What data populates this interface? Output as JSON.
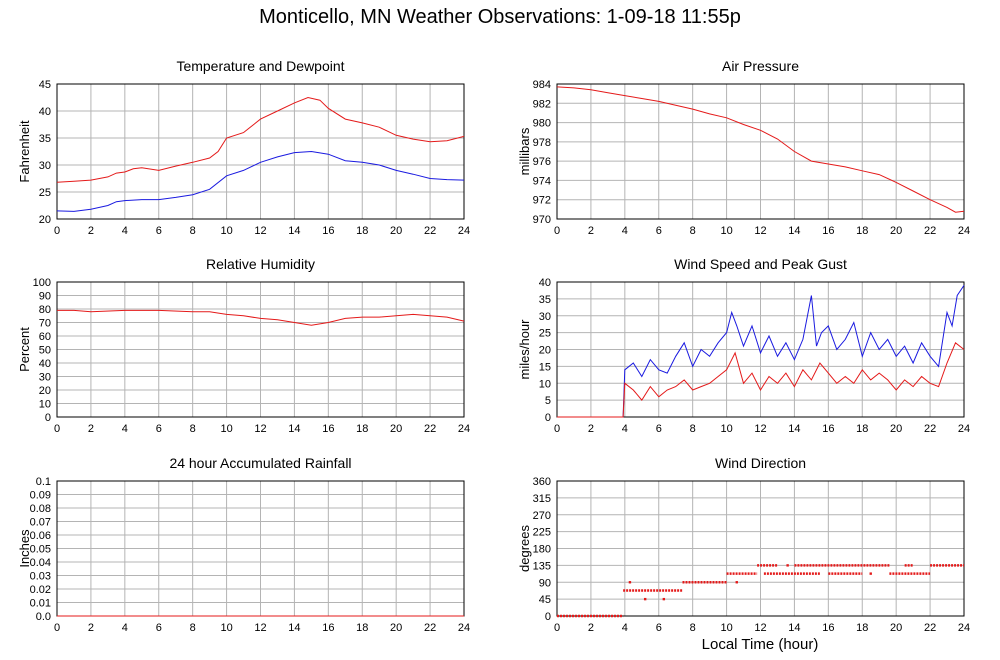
{
  "title": "Monticello, MN Weather Observations: 1-09-18 11:55p",
  "x_axis_label": "Local Time (hour)",
  "colors": {
    "red": "#e41a1a",
    "blue": "#1a1ae0",
    "grid": "#b4b4b4"
  },
  "chart_data": [
    {
      "id": "temp",
      "type": "line",
      "title": "Temperature and Dewpoint",
      "ylabel": "Fahrenheit",
      "xlim": [
        0,
        24
      ],
      "ylim": [
        20,
        45
      ],
      "x_ticks": [
        0,
        2,
        4,
        6,
        8,
        10,
        12,
        14,
        16,
        18,
        20,
        22,
        24
      ],
      "y_ticks": [
        20,
        25,
        30,
        35,
        40,
        45
      ],
      "grid": true,
      "series": [
        {
          "color": "red",
          "x": [
            0,
            1,
            2,
            3,
            3.5,
            4,
            4.5,
            5,
            6,
            7,
            8,
            9,
            9.5,
            10,
            11,
            12,
            13,
            14,
            14.8,
            15.5,
            16,
            17,
            18,
            19,
            20,
            21,
            22,
            23,
            24
          ],
          "y": [
            26.8,
            27.0,
            27.2,
            27.8,
            28.5,
            28.7,
            29.3,
            29.5,
            29.0,
            29.8,
            30.5,
            31.3,
            32.5,
            35.0,
            36.0,
            38.5,
            40.0,
            41.5,
            42.5,
            42.0,
            40.5,
            38.5,
            37.8,
            37.0,
            35.5,
            34.8,
            34.3,
            34.5,
            35.3
          ]
        },
        {
          "color": "blue",
          "x": [
            0,
            1,
            2,
            3,
            3.5,
            4,
            5,
            6,
            7,
            8,
            9,
            10,
            11,
            12,
            13,
            14,
            15,
            16,
            17,
            18,
            19,
            20,
            21,
            22,
            23,
            24
          ],
          "y": [
            21.5,
            21.4,
            21.8,
            22.5,
            23.2,
            23.4,
            23.6,
            23.6,
            24.0,
            24.5,
            25.5,
            28.0,
            29.0,
            30.5,
            31.5,
            32.3,
            32.5,
            32.0,
            30.8,
            30.5,
            30.0,
            29.0,
            28.3,
            27.5,
            27.3,
            27.2
          ]
        }
      ]
    },
    {
      "id": "pressure",
      "type": "line",
      "title": "Air Pressure",
      "ylabel": "millibars",
      "xlim": [
        0,
        24
      ],
      "ylim": [
        970,
        984
      ],
      "x_ticks": [
        0,
        2,
        4,
        6,
        8,
        10,
        12,
        14,
        16,
        18,
        20,
        22,
        24
      ],
      "y_ticks": [
        970,
        972,
        974,
        976,
        978,
        980,
        982,
        984
      ],
      "grid": true,
      "series": [
        {
          "color": "red",
          "x": [
            0,
            1,
            2,
            3,
            4,
            5,
            6,
            7,
            8,
            9,
            10,
            11,
            12,
            13,
            14,
            15,
            16,
            17,
            18,
            19,
            20,
            21,
            22,
            23,
            23.5,
            24
          ],
          "y": [
            983.7,
            983.6,
            983.4,
            983.1,
            982.8,
            982.5,
            982.2,
            981.8,
            981.4,
            980.9,
            980.5,
            979.8,
            979.2,
            978.3,
            977.0,
            976.0,
            975.7,
            975.4,
            975.0,
            974.6,
            973.8,
            972.9,
            972.0,
            971.2,
            970.7,
            970.8
          ]
        }
      ]
    },
    {
      "id": "humidity",
      "type": "line",
      "title": "Relative Humidity",
      "ylabel": "Percent",
      "xlim": [
        0,
        24
      ],
      "ylim": [
        0,
        100
      ],
      "x_ticks": [
        0,
        2,
        4,
        6,
        8,
        10,
        12,
        14,
        16,
        18,
        20,
        22,
        24
      ],
      "y_ticks": [
        0,
        10,
        20,
        30,
        40,
        50,
        60,
        70,
        80,
        90,
        100
      ],
      "grid": true,
      "series": [
        {
          "color": "red",
          "x": [
            0,
            1,
            2,
            4,
            6,
            8,
            9,
            10,
            11,
            12,
            13,
            14,
            15,
            16,
            17,
            18,
            19,
            20,
            21,
            22,
            23,
            24
          ],
          "y": [
            79,
            79,
            78,
            79,
            79,
            78,
            78,
            76,
            75,
            73,
            72,
            70,
            68,
            70,
            73,
            74,
            74,
            75,
            76,
            75,
            74,
            71
          ]
        }
      ]
    },
    {
      "id": "wind",
      "type": "line",
      "title": "Wind Speed and Peak Gust",
      "ylabel": "miles/hour",
      "xlim": [
        0,
        24
      ],
      "ylim": [
        0,
        40
      ],
      "x_ticks": [
        0,
        2,
        4,
        6,
        8,
        10,
        12,
        14,
        16,
        18,
        20,
        22,
        24
      ],
      "y_ticks": [
        0,
        5,
        10,
        15,
        20,
        25,
        30,
        35,
        40
      ],
      "grid": true,
      "series": [
        {
          "color": "blue",
          "x": [
            0,
            3.9,
            4.0,
            4.5,
            5,
            5.5,
            6,
            6.5,
            7,
            7.5,
            8,
            8.5,
            9,
            9.5,
            10,
            10.3,
            10.6,
            11,
            11.5,
            12,
            12.5,
            13,
            13.5,
            14,
            14.5,
            15,
            15.3,
            15.6,
            16,
            16.5,
            17,
            17.5,
            18,
            18.5,
            19,
            19.5,
            20,
            20.5,
            21,
            21.5,
            22,
            22.5,
            23,
            23.3,
            23.6,
            24
          ],
          "y": [
            0,
            0,
            14,
            16,
            12,
            17,
            14,
            13,
            18,
            22,
            15,
            20,
            18,
            22,
            25,
            31,
            27,
            21,
            27,
            19,
            24,
            18,
            22,
            17,
            23,
            36,
            21,
            25,
            27,
            20,
            23,
            28,
            18,
            25,
            20,
            23,
            18,
            21,
            16,
            22,
            18,
            15,
            31,
            27,
            36,
            39
          ]
        },
        {
          "color": "red",
          "x": [
            0,
            3.9,
            4.0,
            4.5,
            5,
            5.5,
            6,
            6.5,
            7,
            7.5,
            8,
            8.5,
            9,
            9.5,
            10,
            10.5,
            11,
            11.5,
            12,
            12.5,
            13,
            13.5,
            14,
            14.5,
            15,
            15.5,
            16,
            16.5,
            17,
            17.5,
            18,
            18.5,
            19,
            19.5,
            20,
            20.5,
            21,
            21.5,
            22,
            22.5,
            23,
            23.5,
            24
          ],
          "y": [
            0,
            0,
            10,
            8,
            5,
            9,
            6,
            8,
            9,
            11,
            8,
            9,
            10,
            12,
            14,
            19,
            10,
            13,
            8,
            12,
            10,
            13,
            9,
            14,
            11,
            16,
            13,
            10,
            12,
            10,
            14,
            11,
            13,
            11,
            8,
            11,
            9,
            12,
            10,
            9,
            16,
            22,
            20
          ]
        }
      ]
    },
    {
      "id": "rain",
      "type": "line",
      "title": "24 hour Accumulated Rainfall",
      "ylabel": "Inches",
      "xlim": [
        0,
        24
      ],
      "ylim": [
        0,
        0.1
      ],
      "x_ticks": [
        0,
        2,
        4,
        6,
        8,
        10,
        12,
        14,
        16,
        18,
        20,
        22,
        24
      ],
      "y_ticks": [
        0,
        0.01,
        0.02,
        0.03,
        0.04,
        0.05,
        0.06,
        0.07,
        0.08,
        0.09,
        0.1
      ],
      "y_tick_labels": [
        "0.0",
        "0.01",
        "0.02",
        "0.03",
        "0.04",
        "0.05",
        "0.06",
        "0.07",
        "0.08",
        "0.09",
        "0.1"
      ],
      "grid": true,
      "series": [
        {
          "color": "red",
          "x": [
            0,
            24
          ],
          "y": [
            0,
            0
          ]
        }
      ]
    },
    {
      "id": "direction",
      "type": "scatter",
      "title": "Wind Direction",
      "ylabel": "degrees",
      "xlim": [
        0,
        24
      ],
      "ylim": [
        0,
        360
      ],
      "x_ticks": [
        0,
        2,
        4,
        6,
        8,
        10,
        12,
        14,
        16,
        18,
        20,
        22,
        24
      ],
      "y_ticks": [
        0,
        45,
        90,
        135,
        180,
        225,
        270,
        315,
        360
      ],
      "grid": true,
      "series": [
        {
          "color": "red",
          "segments": [
            {
              "x0": 0,
              "x1": 3.9,
              "y": 0
            },
            {
              "x0": 3.9,
              "x1": 7.4,
              "y": 68
            },
            {
              "x0": 7.4,
              "x1": 10.0,
              "y": 90
            },
            {
              "x0": 10.0,
              "x1": 11.8,
              "y": 113
            },
            {
              "x0": 11.8,
              "x1": 13.0,
              "y": 135
            },
            {
              "x0": 12.2,
              "x1": 15.5,
              "y": 113
            },
            {
              "x0": 14.0,
              "x1": 19.6,
              "y": 135
            },
            {
              "x0": 16.0,
              "x1": 18.0,
              "y": 113
            },
            {
              "x0": 19.6,
              "x1": 22.0,
              "y": 113
            },
            {
              "x0": 20.5,
              "x1": 21.0,
              "y": 135
            },
            {
              "x0": 22.0,
              "x1": 24.0,
              "y": 135
            }
          ],
          "points": [
            {
              "x": 4.3,
              "y": 90
            },
            {
              "x": 5.2,
              "y": 45
            },
            {
              "x": 6.3,
              "y": 45
            },
            {
              "x": 10.6,
              "y": 90
            },
            {
              "x": 13.6,
              "y": 135
            },
            {
              "x": 18.5,
              "y": 113
            }
          ]
        }
      ]
    }
  ]
}
